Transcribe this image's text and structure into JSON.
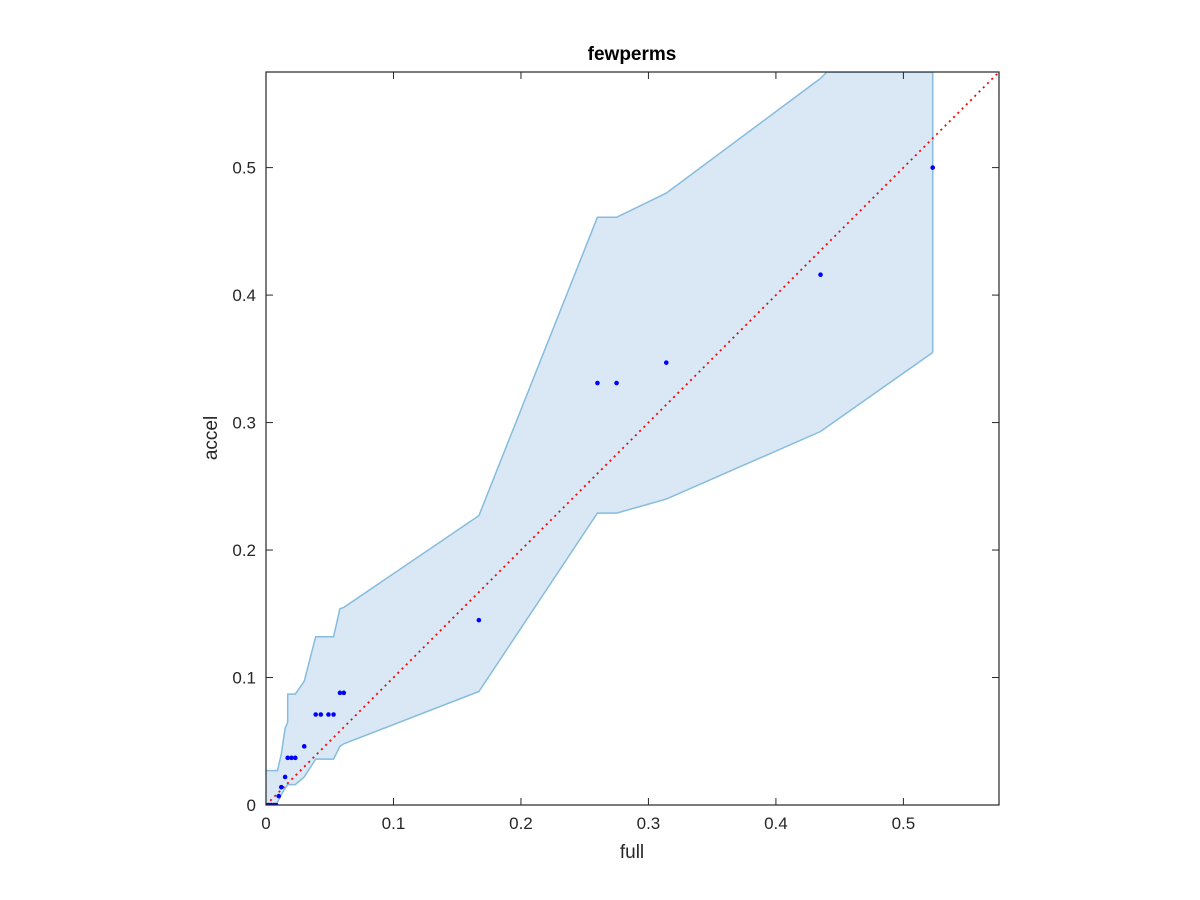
{
  "chart_data": {
    "type": "scatter",
    "title": "fewperms",
    "xlabel": "full",
    "ylabel": "accel",
    "xlim": [
      0,
      0.575
    ],
    "ylim": [
      0,
      0.575
    ],
    "grid": false,
    "box": true,
    "xticks": [
      0,
      0.1,
      0.2,
      0.3,
      0.4,
      0.5
    ],
    "yticks": [
      0,
      0.1,
      0.2,
      0.3,
      0.4,
      0.5
    ],
    "xtick_labels": [
      "0",
      "0.1",
      "0.2",
      "0.3",
      "0.4",
      "0.5"
    ],
    "ytick_labels": [
      "0",
      "0.1",
      "0.2",
      "0.3",
      "0.4",
      "0.5"
    ],
    "colors": {
      "points": "#0000ff",
      "band_fill": "#d9e8f4",
      "band_edge": "#86bcde",
      "diagonal": "#ff0000",
      "axes": "#262626"
    },
    "points": [
      {
        "x": 0.0,
        "y": 0.0
      },
      {
        "x": 0.002,
        "y": 0.0
      },
      {
        "x": 0.004,
        "y": 0.0
      },
      {
        "x": 0.006,
        "y": 0.0
      },
      {
        "x": 0.008,
        "y": 0.0
      },
      {
        "x": 0.01,
        "y": 0.007
      },
      {
        "x": 0.012,
        "y": 0.014
      },
      {
        "x": 0.015,
        "y": 0.022
      },
      {
        "x": 0.017,
        "y": 0.037
      },
      {
        "x": 0.02,
        "y": 0.037
      },
      {
        "x": 0.023,
        "y": 0.037
      },
      {
        "x": 0.03,
        "y": 0.046
      },
      {
        "x": 0.039,
        "y": 0.071
      },
      {
        "x": 0.043,
        "y": 0.071
      },
      {
        "x": 0.049,
        "y": 0.071
      },
      {
        "x": 0.053,
        "y": 0.071
      },
      {
        "x": 0.058,
        "y": 0.088
      },
      {
        "x": 0.061,
        "y": 0.088
      },
      {
        "x": 0.167,
        "y": 0.145
      },
      {
        "x": 0.26,
        "y": 0.331
      },
      {
        "x": 0.275,
        "y": 0.331
      },
      {
        "x": 0.314,
        "y": 0.347
      },
      {
        "x": 0.435,
        "y": 0.416
      },
      {
        "x": 0.523,
        "y": 0.5
      }
    ],
    "band_upper": [
      {
        "x": 0.0,
        "y": 0.027
      },
      {
        "x": 0.009,
        "y": 0.027
      },
      {
        "x": 0.012,
        "y": 0.04
      },
      {
        "x": 0.015,
        "y": 0.06
      },
      {
        "x": 0.017,
        "y": 0.065
      },
      {
        "x": 0.017,
        "y": 0.087
      },
      {
        "x": 0.023,
        "y": 0.087
      },
      {
        "x": 0.03,
        "y": 0.097
      },
      {
        "x": 0.039,
        "y": 0.132
      },
      {
        "x": 0.053,
        "y": 0.132
      },
      {
        "x": 0.058,
        "y": 0.154
      },
      {
        "x": 0.061,
        "y": 0.155
      },
      {
        "x": 0.167,
        "y": 0.227
      },
      {
        "x": 0.26,
        "y": 0.461
      },
      {
        "x": 0.275,
        "y": 0.461
      },
      {
        "x": 0.314,
        "y": 0.48
      },
      {
        "x": 0.435,
        "y": 0.57
      },
      {
        "x": 0.44,
        "y": 0.575
      },
      {
        "x": 0.523,
        "y": 0.575
      }
    ],
    "band_lower": [
      {
        "x": 0.523,
        "y": 0.355
      },
      {
        "x": 0.435,
        "y": 0.293
      },
      {
        "x": 0.314,
        "y": 0.24
      },
      {
        "x": 0.275,
        "y": 0.229
      },
      {
        "x": 0.26,
        "y": 0.229
      },
      {
        "x": 0.167,
        "y": 0.089
      },
      {
        "x": 0.061,
        "y": 0.048
      },
      {
        "x": 0.058,
        "y": 0.046
      },
      {
        "x": 0.053,
        "y": 0.036
      },
      {
        "x": 0.039,
        "y": 0.036
      },
      {
        "x": 0.03,
        "y": 0.022
      },
      {
        "x": 0.023,
        "y": 0.016
      },
      {
        "x": 0.017,
        "y": 0.016
      },
      {
        "x": 0.013,
        "y": 0.01
      },
      {
        "x": 0.01,
        "y": 0.004
      },
      {
        "x": 0.008,
        "y": 0.0
      },
      {
        "x": 0.0,
        "y": 0.0
      }
    ],
    "diagonal": {
      "from": [
        0,
        0
      ],
      "to": [
        0.575,
        0.575
      ],
      "style": "dotted"
    }
  }
}
